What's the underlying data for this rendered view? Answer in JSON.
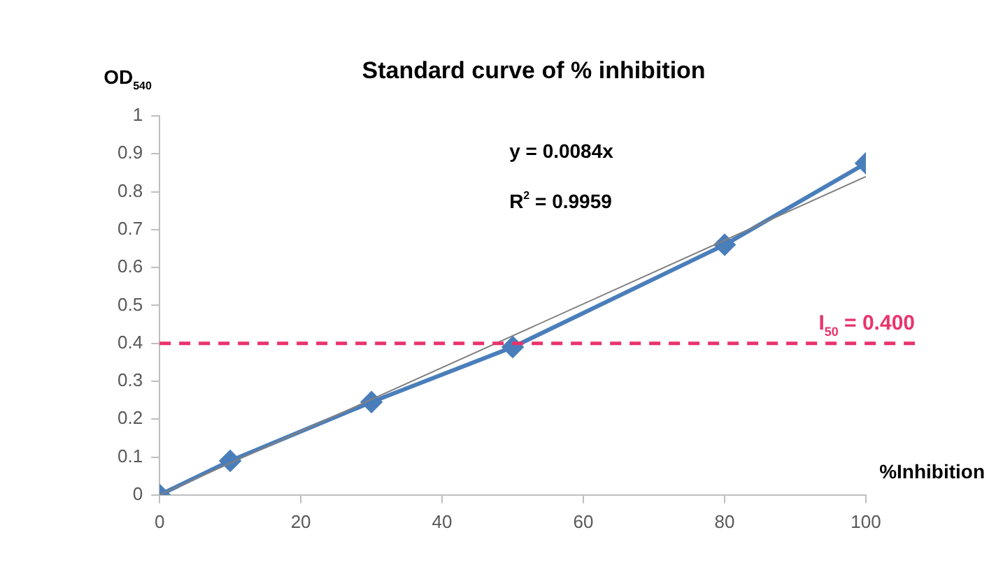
{
  "chart_data": {
    "type": "line",
    "title": "Standard curve of % inhibition",
    "xlabel": "%Inhibition",
    "ylabel": "OD$_{540}$",
    "x": [
      0,
      10,
      30,
      50,
      80,
      100
    ],
    "series": [
      {
        "color": "#4a7ebb",
        "values": [
          0,
          0.09,
          0.245,
          0.39,
          0.66,
          0.875
        ],
        "marker": "diamond"
      },
      {
        "type": "line",
        "color": "#808080",
        "x": [
          0,
          100
        ],
        "values": [
          0,
          0.84
        ],
        "marker": "none"
      }
    ],
    "xlim": [
      0,
      100
    ],
    "xticks": [
      0,
      20,
      40,
      60,
      80,
      100
    ],
    "ylim": [
      0,
      1
    ],
    "yticks": [
      0,
      0.1,
      0.2,
      0.3,
      0.4,
      0.5,
      0.6,
      0.7,
      0.8,
      0.9,
      1
    ],
    "ref_lines": [
      {
        "axis": "y",
        "value": 0.4,
        "label": "I$_{50}$ = 0.400",
        "color": "#e8336b",
        "line_style": "dashed"
      }
    ],
    "annotations": [
      "y = 0.0084x",
      "R$^{2}$ = 0.9959"
    ],
    "grid": false,
    "legend": false
  }
}
